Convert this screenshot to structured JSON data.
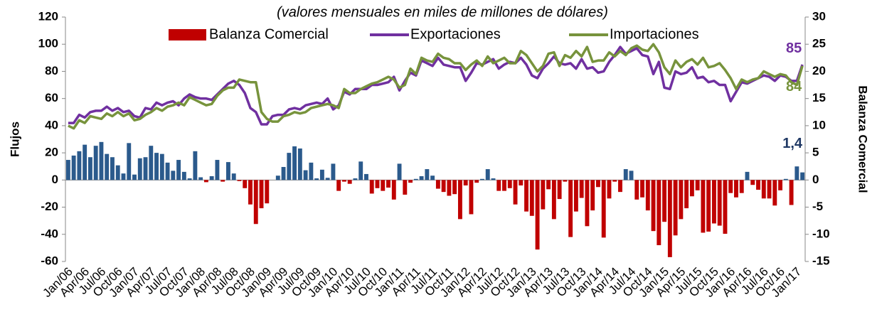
{
  "chart_data": {
    "type": "combo",
    "subtitle": "(valores mensuales en miles de millones de dólares)",
    "y_label": "Flujos",
    "y2_label": "Balanza Comercial",
    "categories": [
      "Jan/06",
      null,
      null,
      "Apr/06",
      null,
      null,
      "Jul/06",
      null,
      null,
      "Oct/06",
      null,
      null,
      "Jan/07",
      null,
      null,
      "Apr/07",
      null,
      null,
      "Jul/07",
      null,
      null,
      "Oct/07",
      null,
      null,
      "Jan/08",
      null,
      null,
      "Apr/08",
      null,
      null,
      "Jul/08",
      null,
      null,
      "Oct/08",
      null,
      null,
      "Jan/09",
      null,
      null,
      "Apr/09",
      null,
      null,
      "Jul/09",
      null,
      null,
      "Oct/09",
      null,
      null,
      "Jan/10",
      null,
      null,
      "Apr/10",
      null,
      null,
      "Jul/10",
      null,
      null,
      "Oct/10",
      null,
      null,
      "Jan/11",
      null,
      null,
      "Apr/11",
      null,
      null,
      "Jul/11",
      null,
      null,
      "Oct/11",
      null,
      null,
      "Jan/12",
      null,
      null,
      "Apr/12",
      null,
      null,
      "Jul/12",
      null,
      null,
      "Oct/12",
      null,
      null,
      "Jan/13",
      null,
      null,
      "Apr/13",
      null,
      null,
      "Jul/13",
      null,
      null,
      "Oct/13",
      null,
      null,
      "Jan/14",
      null,
      null,
      "Apr/14",
      null,
      null,
      "Jul/14",
      null,
      null,
      "Oct/14",
      null,
      null,
      "Jan/15",
      null,
      null,
      "Apr/15",
      null,
      null,
      "Jul/15",
      null,
      null,
      "Oct/15",
      null,
      null,
      "Jan/16",
      null,
      null,
      "Apr/16",
      null,
      null,
      "Jul/16",
      null,
      null,
      "Oct/16",
      null,
      null,
      "Jan/17",
      null
    ],
    "series": [
      {
        "name": "Balanza Comercial",
        "type": "bar",
        "axis": "y2",
        "color": "#c00000",
        "positive_color": "#2b5a8c",
        "last_label": "1,4",
        "last_label_color": "#1f3864",
        "values": [
          3.7,
          4.5,
          5.3,
          6.5,
          4.2,
          6.3,
          7,
          4.8,
          4.2,
          2.7,
          1.2,
          6.8,
          1,
          4,
          4.2,
          6.3,
          5,
          4.8,
          3.2,
          1.7,
          3.7,
          1.5,
          0.3,
          5.3,
          0.5,
          -0.4,
          0.7,
          3.7,
          -0.3,
          3.3,
          1.2,
          -0.2,
          -1.5,
          -4.5,
          -8.1,
          -5.2,
          -4.3,
          0,
          0.8,
          2.4,
          5,
          6.2,
          5.8,
          1.8,
          3.2,
          0.3,
          1.9,
          0.4,
          3,
          -2,
          -0.3,
          -0.7,
          0.3,
          3.4,
          1.1,
          -2.5,
          -1.5,
          -2,
          -1.4,
          -3.6,
          3,
          -2.7,
          -0.5,
          0.2,
          0.7,
          2,
          0.8,
          -1.6,
          -2.2,
          -2.9,
          -2.6,
          -7.2,
          -1,
          -6.3,
          -0.5,
          0.2,
          2,
          0.3,
          -2,
          -2,
          -1.5,
          -4.5,
          -1,
          -5.8,
          -6.6,
          -12.8,
          -5.4,
          -1.7,
          -7.2,
          -3.5,
          -0.3,
          -10.5,
          -5.8,
          -3.3,
          -8.5,
          -5.6,
          -1.3,
          -10.6,
          -3.4,
          -0.3,
          -2.2,
          2,
          1.7,
          -3.6,
          -3.2,
          -5.6,
          -9.4,
          -12,
          -7.7,
          -14.2,
          -10.2,
          -7.2,
          -5.2,
          -3,
          -1.9,
          -9.7,
          -9.5,
          -8,
          -8.4,
          -9.9,
          -2.4,
          -3.2,
          -2.4,
          1.5,
          -0.9,
          -1.8,
          -3.4,
          -3.4,
          -4.7,
          -1.9,
          0.2,
          -4.6,
          2.5,
          1.4
        ]
      },
      {
        "name": "Exportaciones",
        "type": "line",
        "color": "#7030a0",
        "label_last": true,
        "values": [
          42,
          42,
          48,
          46,
          50,
          51,
          51,
          54,
          51,
          53,
          50,
          51,
          47,
          46,
          53,
          52,
          57,
          55,
          57,
          58,
          55,
          60,
          63,
          61,
          60,
          60,
          59,
          63,
          67,
          71,
          73,
          70,
          64,
          53,
          50,
          41,
          41,
          47,
          48,
          48,
          52,
          53,
          52,
          55,
          56,
          57,
          56,
          60,
          52,
          55,
          65,
          63,
          67,
          67,
          67,
          70,
          70,
          71,
          72,
          76,
          66,
          73,
          79,
          77,
          88,
          86,
          84,
          90,
          85,
          84,
          83,
          83,
          73,
          79,
          86,
          85,
          87,
          89,
          82,
          85,
          87,
          86,
          90,
          85,
          77,
          75,
          82,
          86,
          91,
          86,
          85,
          86,
          82,
          89,
          82,
          83,
          79,
          80,
          87,
          92,
          98,
          93,
          95,
          97,
          92,
          91,
          78,
          87,
          68,
          67,
          80,
          78,
          79,
          83,
          75,
          76,
          72,
          73,
          70,
          70,
          58,
          65,
          72,
          71,
          73,
          75,
          77,
          76,
          73,
          77,
          76,
          73,
          73,
          85
        ]
      },
      {
        "name": "Importaciones",
        "type": "line",
        "color": "#77933c",
        "label_last": true,
        "values": [
          40,
          38,
          44,
          42,
          47,
          46,
          45,
          49,
          47,
          50,
          47,
          49,
          44,
          45,
          48,
          50,
          53,
          51,
          54,
          55,
          57,
          55,
          61,
          59,
          57,
          55,
          56,
          62,
          66,
          68,
          68,
          74,
          73,
          72,
          72,
          50,
          45,
          43,
          43,
          47,
          48,
          50,
          49,
          50,
          53,
          54,
          55,
          56,
          55,
          53,
          67,
          64,
          64,
          67,
          69,
          71,
          72,
          74,
          76,
          74,
          68,
          70,
          82,
          78,
          90,
          88,
          87,
          93,
          90,
          89,
          86,
          86,
          81,
          85,
          88,
          84,
          91,
          86,
          88,
          90,
          86,
          86,
          95,
          92,
          86,
          80,
          84,
          93,
          94,
          84,
          92,
          90,
          95,
          91,
          98,
          87,
          88,
          88,
          94,
          91,
          95,
          92,
          97,
          99,
          96,
          95,
          100,
          94,
          83,
          78,
          88,
          83,
          87,
          89,
          85,
          90,
          83,
          84,
          86,
          81,
          75,
          67,
          74,
          72,
          74,
          75,
          80,
          78,
          76,
          78,
          77,
          72,
          70,
          84
        ]
      }
    ],
    "ylim": [
      -60,
      120
    ],
    "yticks": [
      -60,
      -40,
      -20,
      0,
      20,
      40,
      60,
      80,
      100,
      120
    ],
    "y2lim": [
      -15,
      30
    ],
    "y2ticks": [
      -15,
      -10,
      -5,
      0,
      5,
      10,
      15,
      20,
      25,
      30
    ]
  }
}
